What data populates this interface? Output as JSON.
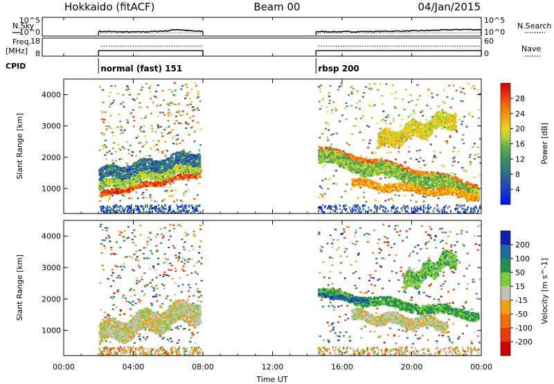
{
  "header": {
    "title_left": "Hokkaido (fitACF)",
    "title_center": "Beam 00",
    "title_right": "04/Jan/2015"
  },
  "chart_data": [
    {
      "type": "line",
      "panel": "noise",
      "left_label": "N.Sky",
      "right_label": "N.Search",
      "left_ticks": [
        "10^5",
        "10^0"
      ],
      "right_ticks": [
        "10^5",
        "10^0"
      ],
      "x_unit": "hours UT",
      "xlim": [
        0,
        24
      ],
      "scale": "log",
      "segments": [
        [
          2.0,
          8.0
        ],
        [
          14.5,
          24.0
        ]
      ],
      "series": [
        {
          "name": "N.Sky",
          "style": "solid",
          "x": [
            2,
            3,
            4,
            5,
            6,
            6.5,
            7,
            7.5,
            8,
            14.5,
            16,
            18,
            20,
            21,
            22,
            23,
            24
          ],
          "y": [
            10,
            8,
            7,
            9,
            15,
            40,
            20,
            12,
            10,
            9,
            8,
            10,
            14,
            20,
            30,
            40,
            35
          ]
        },
        {
          "name": "N.Search",
          "style": "dotted",
          "x": [
            2,
            8,
            14.5,
            24
          ],
          "y": [
            3,
            3,
            3,
            3
          ]
        }
      ]
    },
    {
      "type": "line",
      "panel": "frequency",
      "left_label": "Freq.",
      "left_unit": "[MHz]",
      "right_label": "Nave",
      "left_ticks": [
        "18",
        "8"
      ],
      "right_ticks": [
        "60",
        "0"
      ],
      "left_range": [
        8,
        18
      ],
      "right_range": [
        0,
        60
      ],
      "series": [
        {
          "name": "Freq.",
          "style": "solid",
          "x": [
            2,
            8,
            14.5,
            24
          ],
          "y": [
            11,
            11,
            11,
            11
          ]
        },
        {
          "name": "Nave",
          "style": "dotted",
          "x": [
            2,
            8,
            14.5,
            24
          ],
          "y": [
            35,
            35,
            35,
            35
          ]
        }
      ]
    },
    {
      "type": "table",
      "panel": "cpid",
      "label": "CPID",
      "modes": [
        {
          "start": 2.0,
          "end": 8.0,
          "text": "normal (fast) 151"
        },
        {
          "start": 14.5,
          "end": 24.0,
          "text": "rbsp 200"
        }
      ]
    },
    {
      "type": "heatmap",
      "panel": "power",
      "ylabel": "Slant Range [km]",
      "xlim": [
        0,
        24
      ],
      "ylim": [
        200,
        4500
      ],
      "yticks": [
        1000,
        2000,
        3000,
        4000
      ],
      "colorbar": {
        "label": "Power [dB]",
        "ticks": [
          4,
          8,
          12,
          16,
          20,
          24,
          28
        ],
        "range": [
          0,
          32
        ],
        "colors": [
          "#0010f0",
          "#1f3cc6",
          "#2e6a8e",
          "#3c8f5e",
          "#5fb14a",
          "#b6d43a",
          "#f1d21b",
          "#f3a010",
          "#f26a0a",
          "#e42a0a",
          "#d40000"
        ]
      },
      "features": [
        {
          "from": [
            2.0,
            820
          ],
          "to": [
            7.8,
            1500
          ],
          "value": 26,
          "width_km": 160
        },
        {
          "from": [
            2.0,
            1100
          ],
          "to": [
            7.8,
            1750
          ],
          "value": 15,
          "width_km": 280
        },
        {
          "from": [
            2.0,
            1450
          ],
          "to": [
            7.8,
            2050
          ],
          "value": 8,
          "width_km": 380
        },
        {
          "from": [
            14.6,
            2250
          ],
          "to": [
            23.8,
            1100
          ],
          "value": 24,
          "width_km": 220
        },
        {
          "from": [
            14.6,
            2050
          ],
          "to": [
            23.8,
            900
          ],
          "value": 14,
          "width_km": 420
        },
        {
          "from": [
            16.5,
            1200
          ],
          "to": [
            23.8,
            800
          ],
          "value": 22,
          "width_km": 240
        },
        {
          "from": [
            18.0,
            2500
          ],
          "to": [
            22.5,
            3300
          ],
          "value": 18,
          "width_km": 500
        }
      ]
    },
    {
      "type": "heatmap",
      "panel": "velocity",
      "xlabel": "Time UT",
      "ylabel": "Slant Range [km]",
      "xlim": [
        0,
        24
      ],
      "ylim": [
        200,
        4500
      ],
      "xticks": [
        "00:00",
        "04:00",
        "08:00",
        "12:00",
        "16:00",
        "20:00",
        "00:00"
      ],
      "yticks": [
        1000,
        2000,
        3000,
        4000
      ],
      "colorbar": {
        "label": "Velocity [m s^-1]",
        "ticks": [
          200,
          100,
          50,
          15,
          -15,
          -50,
          -100,
          -200
        ],
        "colors": [
          "#1020b0",
          "#1e6a9e",
          "#22904c",
          "#7ccc38",
          "#c0c0b8",
          "#f3a010",
          "#f07010",
          "#e83a0a",
          "#d00000"
        ]
      },
      "features": [
        {
          "from": [
            2.0,
            900
          ],
          "to": [
            7.8,
            1700
          ],
          "value": 0,
          "width_km": 650
        },
        {
          "from": [
            14.6,
            2200
          ],
          "to": [
            23.8,
            1500
          ],
          "value": 60,
          "width_km": 280
        },
        {
          "from": [
            14.6,
            2150
          ],
          "to": [
            17.5,
            1950
          ],
          "value": 180,
          "width_km": 120
        },
        {
          "from": [
            16.5,
            1500
          ],
          "to": [
            22.0,
            1200
          ],
          "value": 0,
          "width_km": 350
        },
        {
          "from": [
            19.5,
            2500
          ],
          "to": [
            22.5,
            3400
          ],
          "value": 40,
          "width_km": 500
        }
      ]
    }
  ]
}
